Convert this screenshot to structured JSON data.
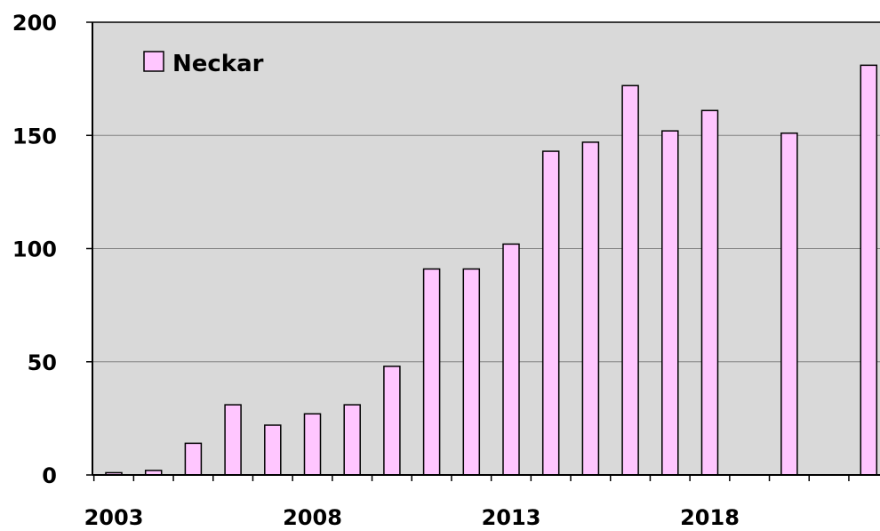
{
  "chart_data": {
    "type": "bar",
    "x": [
      2003,
      2004,
      2005,
      2006,
      2007,
      2008,
      2009,
      2010,
      2011,
      2012,
      2013,
      2014,
      2015,
      2016,
      2017,
      2018,
      2019,
      2020,
      2021,
      2022
    ],
    "series": [
      {
        "name": "Neckar",
        "values": [
          1,
          2,
          14,
          31,
          22,
          27,
          31,
          48,
          91,
          91,
          102,
          143,
          147,
          172,
          152,
          161,
          null,
          151,
          null,
          181
        ],
        "color": "#ffc6ff"
      }
    ],
    "ylim": [
      0,
      200
    ],
    "yticks": [
      0,
      50,
      100,
      150,
      200
    ],
    "xtick_labels": [
      "2003",
      "2008",
      "2013",
      "2018"
    ],
    "grid": "horizontal",
    "plot_background": "#d9d9d9",
    "legend_position": "top-left"
  }
}
